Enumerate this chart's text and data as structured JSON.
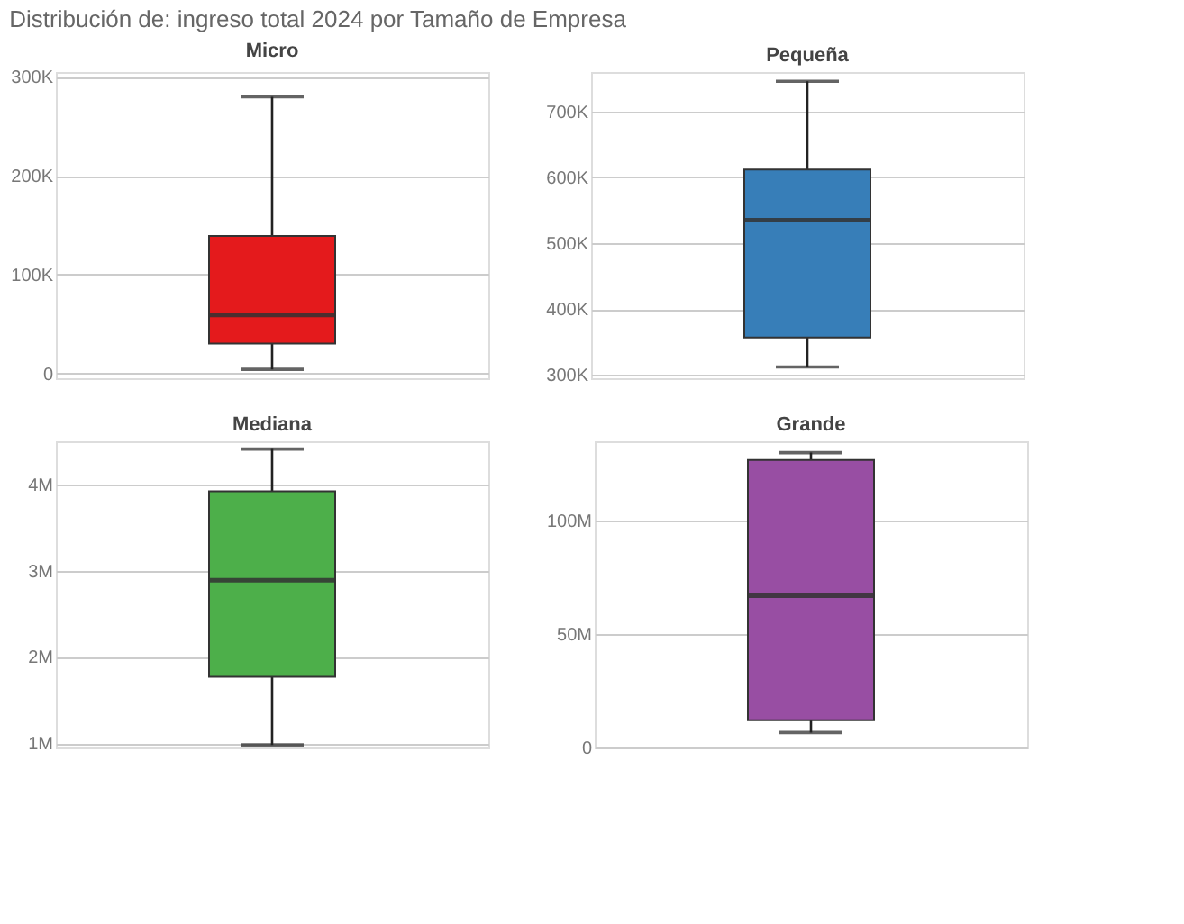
{
  "chart_data": [
    {
      "type": "box",
      "title": "Micro",
      "categories": [
        null
      ],
      "colors": [
        "#e41a1c"
      ],
      "boxes": [
        {
          "low": 4000,
          "q1": 30000,
          "median": 59000,
          "q3": 139000,
          "high": 280000
        }
      ],
      "ylim": [
        -5000,
        305000
      ],
      "yticks": [
        {
          "value": 0,
          "label": "0"
        },
        {
          "value": 100000,
          "label": "100K"
        },
        {
          "value": 200000,
          "label": "200K"
        },
        {
          "value": 300000,
          "label": "300K"
        }
      ],
      "grid": "y",
      "tick_labels": "y",
      "annotations": [
        "Distribución de: ingreso total 2024 por Tamaño de Empresa"
      ]
    },
    {
      "type": "box",
      "title": "Pequeña",
      "categories": [
        null
      ],
      "colors": [
        "#377eb8"
      ],
      "boxes": [
        {
          "low": 312000,
          "q1": 357000,
          "median": 535000,
          "q3": 612000,
          "high": 746000
        }
      ],
      "ylim": [
        295000,
        760000
      ],
      "yticks": [
        {
          "value": 300000,
          "label": "300K"
        },
        {
          "value": 400000,
          "label": "400K"
        },
        {
          "value": 500000,
          "label": "500K"
        },
        {
          "value": 600000,
          "label": "600K"
        },
        {
          "value": 700000,
          "label": "700K"
        }
      ],
      "grid": "y",
      "tick_labels": "y"
    },
    {
      "type": "box",
      "title": "Mediana",
      "categories": [
        null
      ],
      "colors": [
        "#4daf4a"
      ],
      "boxes": [
        {
          "low": 980000,
          "q1": 1770000,
          "median": 2890000,
          "q3": 3920000,
          "high": 4410000
        }
      ],
      "ylim": [
        950000,
        4500000
      ],
      "yticks": [
        {
          "value": 1000000,
          "label": "1M"
        },
        {
          "value": 2000000,
          "label": "2M"
        },
        {
          "value": 3000000,
          "label": "3M"
        },
        {
          "value": 4000000,
          "label": "4M"
        }
      ],
      "grid": "y",
      "tick_labels": "y"
    },
    {
      "type": "box",
      "title": "Grande",
      "categories": [
        null
      ],
      "colors": [
        "#984ea3"
      ],
      "boxes": [
        {
          "low": 6600000,
          "q1": 12000000,
          "median": 66900000,
          "q3": 126800000,
          "high": 130000000
        }
      ],
      "ylim": [
        0,
        135000000
      ],
      "yticks": [
        {
          "value": 0,
          "label": "0"
        },
        {
          "value": 50000000,
          "label": "50M"
        },
        {
          "value": 100000000,
          "label": "100M"
        }
      ],
      "grid": "y",
      "tick_labels": "y"
    }
  ]
}
